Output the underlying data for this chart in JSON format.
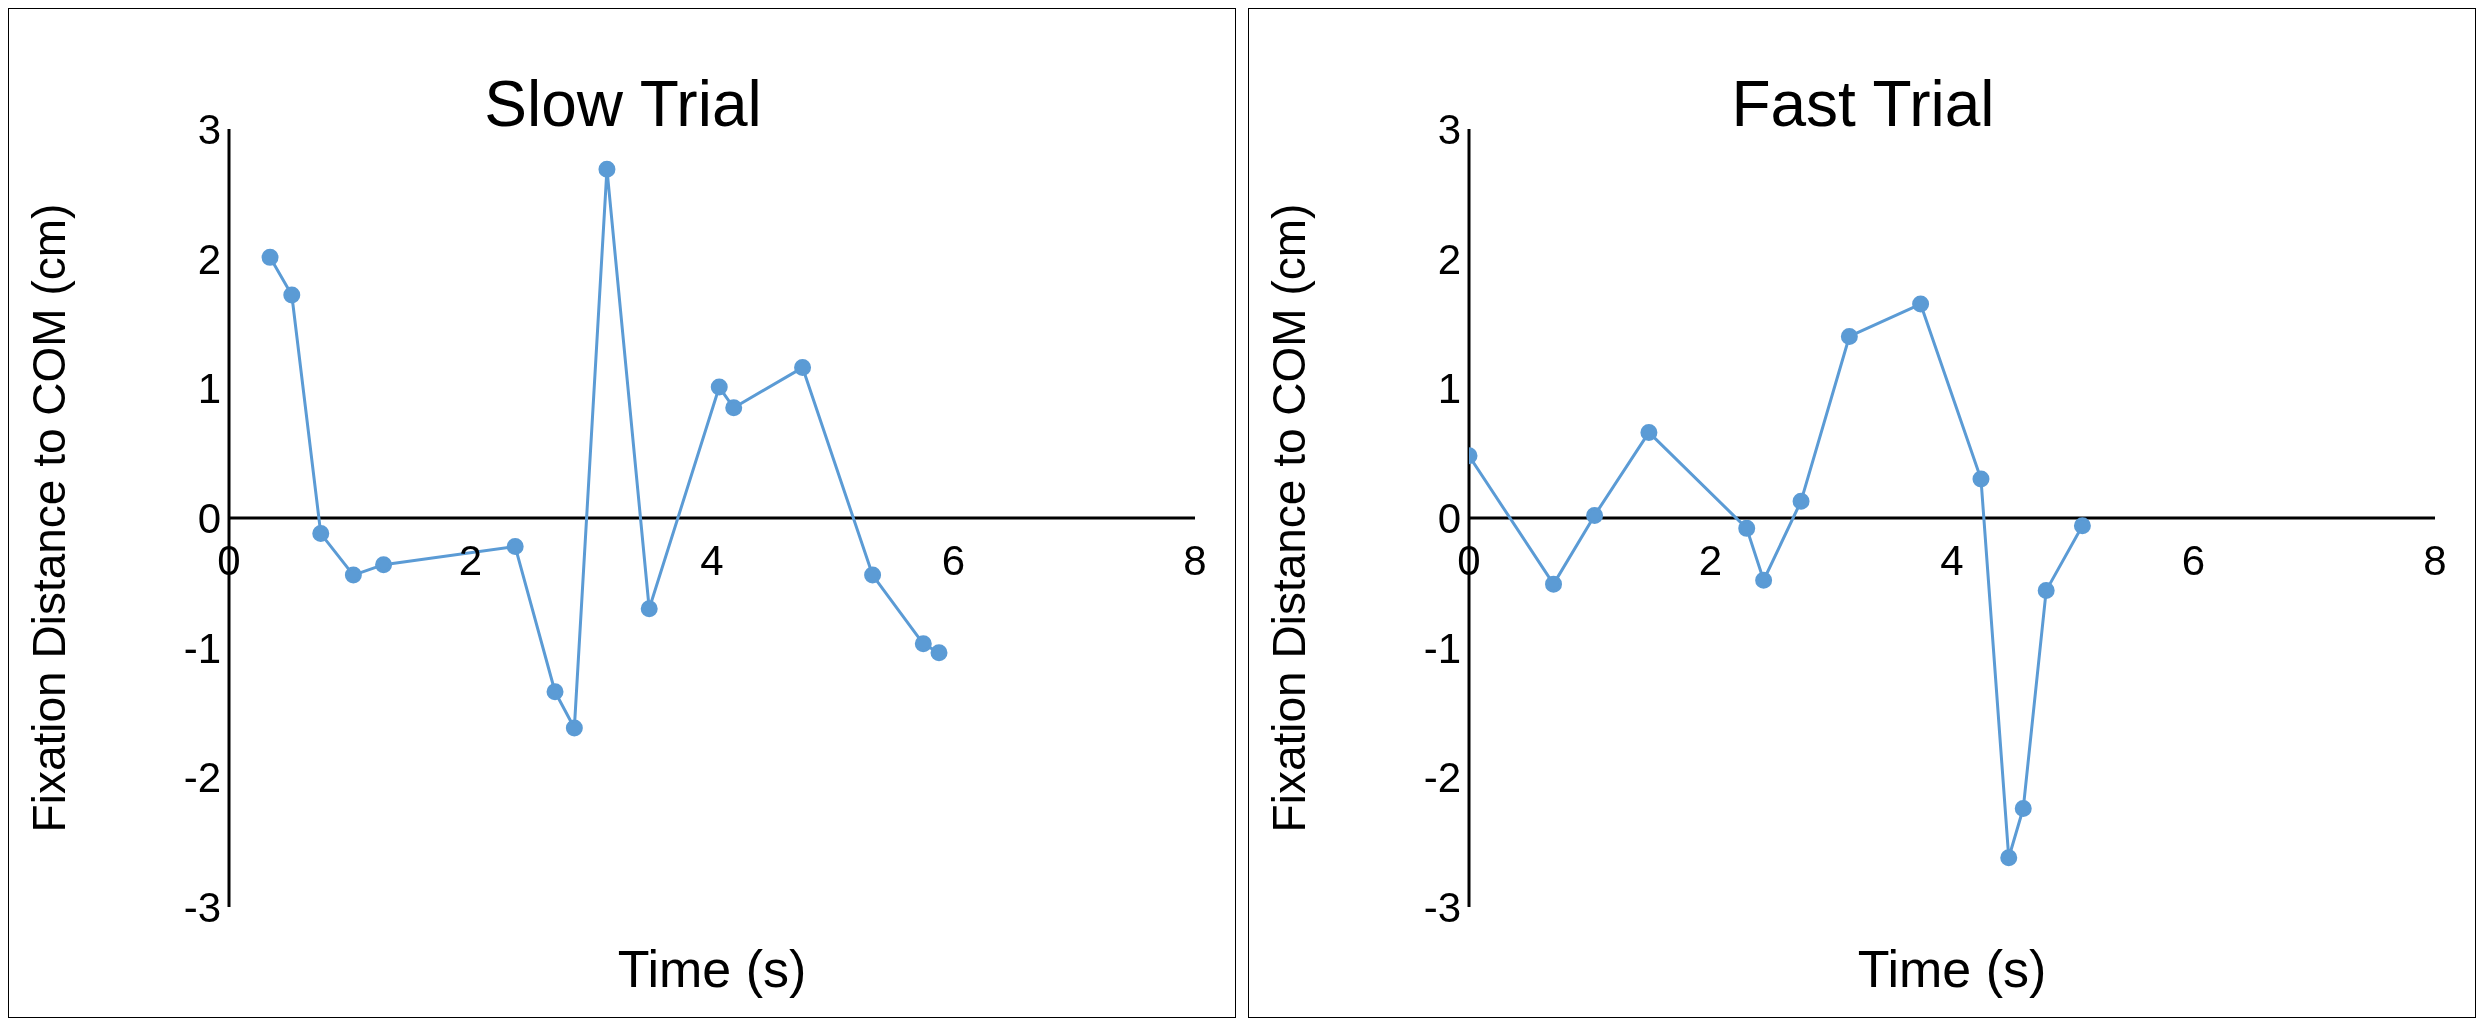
{
  "chart_data": [
    {
      "type": "line",
      "title": "Slow Trial",
      "xlabel": "Time (s)",
      "ylabel": "Fixation Distance to COM (cm)",
      "x": [
        0.34,
        0.52,
        0.76,
        1.03,
        1.28,
        2.37,
        2.7,
        2.86,
        3.13,
        3.48,
        4.06,
        4.18,
        4.75,
        5.33,
        5.75,
        5.88
      ],
      "series": [
        {
          "color": "#5b9bd5",
          "values": [
            2.01,
            1.72,
            -0.12,
            -0.44,
            -0.36,
            -0.22,
            -1.34,
            -1.62,
            2.69,
            -0.7,
            1.01,
            0.85,
            1.16,
            -0.44,
            -0.97,
            -1.04
          ]
        }
      ],
      "xlim": [
        0,
        8
      ],
      "xticks": [
        0,
        2,
        4,
        6,
        8
      ],
      "ylim": [
        -3,
        3
      ],
      "yticks": [
        -3,
        -2,
        -1,
        0,
        1,
        2,
        3
      ],
      "marker": "circle",
      "line_style": "solid",
      "grid": false,
      "legend": false
    },
    {
      "type": "line",
      "title": "Fast Trial",
      "xlabel": "Time (s)",
      "ylabel": "Fixation Distance to COM (cm)",
      "x": [
        0,
        0.7,
        1.04,
        1.49,
        2.3,
        2.44,
        2.75,
        3.15,
        3.74,
        4.24,
        4.47,
        4.59,
        4.78,
        5.08
      ],
      "series": [
        {
          "color": "#5b9bd5",
          "values": [
            0.48,
            -0.51,
            0.02,
            0.66,
            -0.08,
            -0.48,
            0.13,
            1.4,
            1.65,
            0.3,
            -2.62,
            -2.24,
            -0.56,
            -0.06
          ]
        }
      ],
      "xlim": [
        0,
        8
      ],
      "xticks": [
        0,
        2,
        4,
        6,
        8
      ],
      "ylim": [
        -3,
        3
      ],
      "yticks": [
        -3,
        -2,
        -1,
        0,
        1,
        2,
        3
      ],
      "marker": "circle",
      "line_style": "solid",
      "grid": false,
      "legend": false
    }
  ]
}
